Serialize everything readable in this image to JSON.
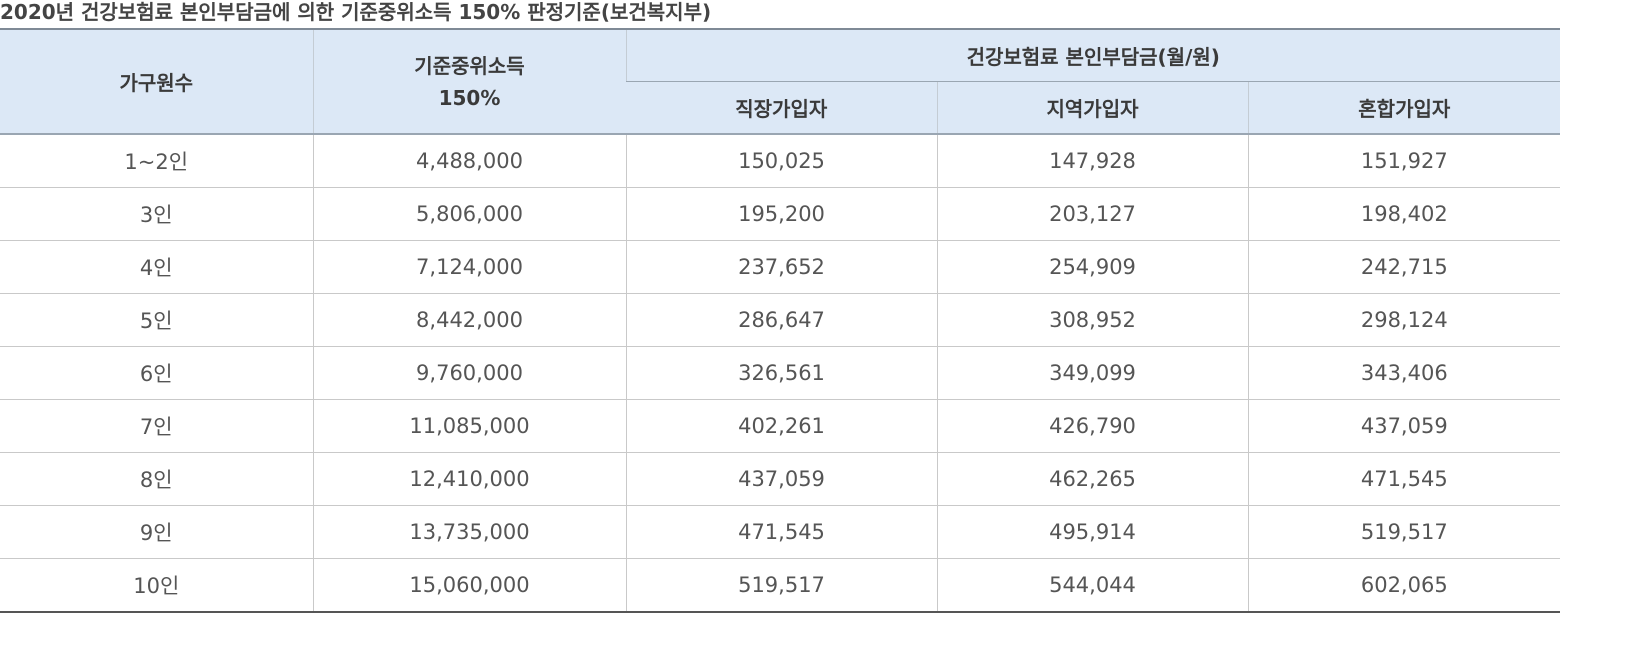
{
  "caption": "2020년 건강보험료 본인부담금에 의한 기준중위소득 150% 판정기준(보건복지부)",
  "headers": {
    "household": "가구원수",
    "median_income_line1": "기준중위소득",
    "median_income_line2": "150%",
    "premium_group": "건강보험료 본인부담금(월/원)",
    "employee": "직장가입자",
    "regional": "지역가입자",
    "mixed": "혼합가입자"
  },
  "rows": [
    {
      "household": "1~2인",
      "income": "4,488,000",
      "employee": "150,025",
      "regional": "147,928",
      "mixed": "151,927"
    },
    {
      "household": "3인",
      "income": "5,806,000",
      "employee": "195,200",
      "regional": "203,127",
      "mixed": "198,402"
    },
    {
      "household": "4인",
      "income": "7,124,000",
      "employee": "237,652",
      "regional": "254,909",
      "mixed": "242,715"
    },
    {
      "household": "5인",
      "income": "8,442,000",
      "employee": "286,647",
      "regional": "308,952",
      "mixed": "298,124"
    },
    {
      "household": "6인",
      "income": "9,760,000",
      "employee": "326,561",
      "regional": "349,099",
      "mixed": "343,406"
    },
    {
      "household": "7인",
      "income": "11,085,000",
      "employee": "402,261",
      "regional": "426,790",
      "mixed": "437,059"
    },
    {
      "household": "8인",
      "income": "12,410,000",
      "employee": "437,059",
      "regional": "462,265",
      "mixed": "471,545"
    },
    {
      "household": "9인",
      "income": "13,735,000",
      "employee": "471,545",
      "regional": "495,914",
      "mixed": "519,517"
    },
    {
      "household": "10인",
      "income": "15,060,000",
      "employee": "519,517",
      "regional": "544,044",
      "mixed": "602,065"
    }
  ]
}
